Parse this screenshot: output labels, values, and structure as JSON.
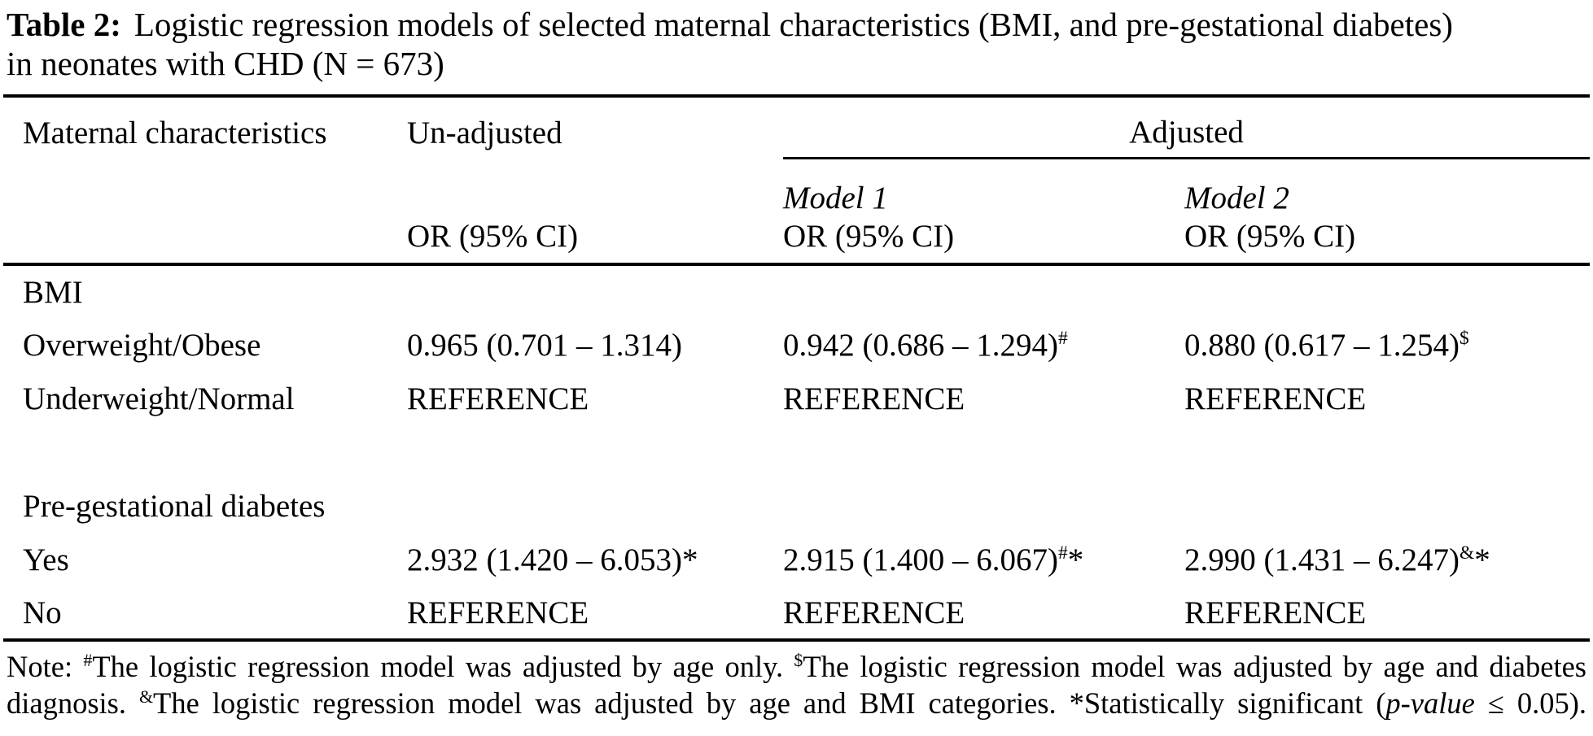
{
  "title": {
    "label": "Table 2:",
    "line1_rest": "Logistic regression models of selected maternal characteristics (BMI, and pre-gestational diabetes)",
    "line2": "in neonates with CHD (N = 673)"
  },
  "table": {
    "headers": {
      "maternal": "Maternal characteristics",
      "unadjusted": "Un-adjusted",
      "adjusted": "Adjusted",
      "model1": "Model 1",
      "model2": "Model 2",
      "or_ci": "OR (95% CI)"
    },
    "rows": [
      {
        "label": "BMI",
        "cells": [
          {
            "text": "",
            "sup": "",
            "after": ""
          },
          {
            "text": "",
            "sup": "",
            "after": ""
          },
          {
            "text": "",
            "sup": "",
            "after": ""
          }
        ]
      },
      {
        "label": "Overweight/Obese",
        "cells": [
          {
            "text": "0.965 (0.701 – 1.314)",
            "sup": "",
            "after": ""
          },
          {
            "text": "0.942 (0.686 – 1.294)",
            "sup": "#",
            "after": ""
          },
          {
            "text": "0.880 (0.617 – 1.254)",
            "sup": "$",
            "after": ""
          }
        ]
      },
      {
        "label": "Underweight/Normal",
        "cells": [
          {
            "text": "REFERENCE",
            "sup": "",
            "after": ""
          },
          {
            "text": "REFERENCE",
            "sup": "",
            "after": ""
          },
          {
            "text": "REFERENCE",
            "sup": "",
            "after": ""
          }
        ]
      },
      {
        "label": "",
        "cells": [
          {
            "text": "",
            "sup": "",
            "after": ""
          },
          {
            "text": "",
            "sup": "",
            "after": ""
          },
          {
            "text": "",
            "sup": "",
            "after": ""
          }
        ]
      },
      {
        "label": "Pre-gestational diabetes",
        "cells": [
          {
            "text": "",
            "sup": "",
            "after": ""
          },
          {
            "text": "",
            "sup": "",
            "after": ""
          },
          {
            "text": "",
            "sup": "",
            "after": ""
          }
        ]
      },
      {
        "label": "Yes",
        "cells": [
          {
            "text": "2.932 (1.420 – 6.053)*",
            "sup": "",
            "after": ""
          },
          {
            "text": "2.915 (1.400 – 6.067)",
            "sup": "#",
            "after": "*"
          },
          {
            "text": "2.990 (1.431 – 6.247)",
            "sup": "&",
            "after": "*"
          }
        ]
      },
      {
        "label": "No",
        "cells": [
          {
            "text": "REFERENCE",
            "sup": "",
            "after": ""
          },
          {
            "text": "REFERENCE",
            "sup": "",
            "after": ""
          },
          {
            "text": "REFERENCE",
            "sup": "",
            "after": ""
          }
        ]
      }
    ]
  },
  "note": {
    "p0": "Note: ",
    "sup1": "#",
    "t1": "The logistic regression model was adjusted by age only. ",
    "sup2": "$",
    "t2": "The logistic regression model was adjusted by age and diabetes diagnosis. ",
    "sup3": "&",
    "t3": "The logistic regression model was adjusted by age and BMI categories. *Statistically significant (",
    "pvalue": "p-value",
    "t4": " ≤ 0.05)."
  },
  "colors": {
    "text": "#000000",
    "background": "#ffffff",
    "rule": "#000000"
  }
}
